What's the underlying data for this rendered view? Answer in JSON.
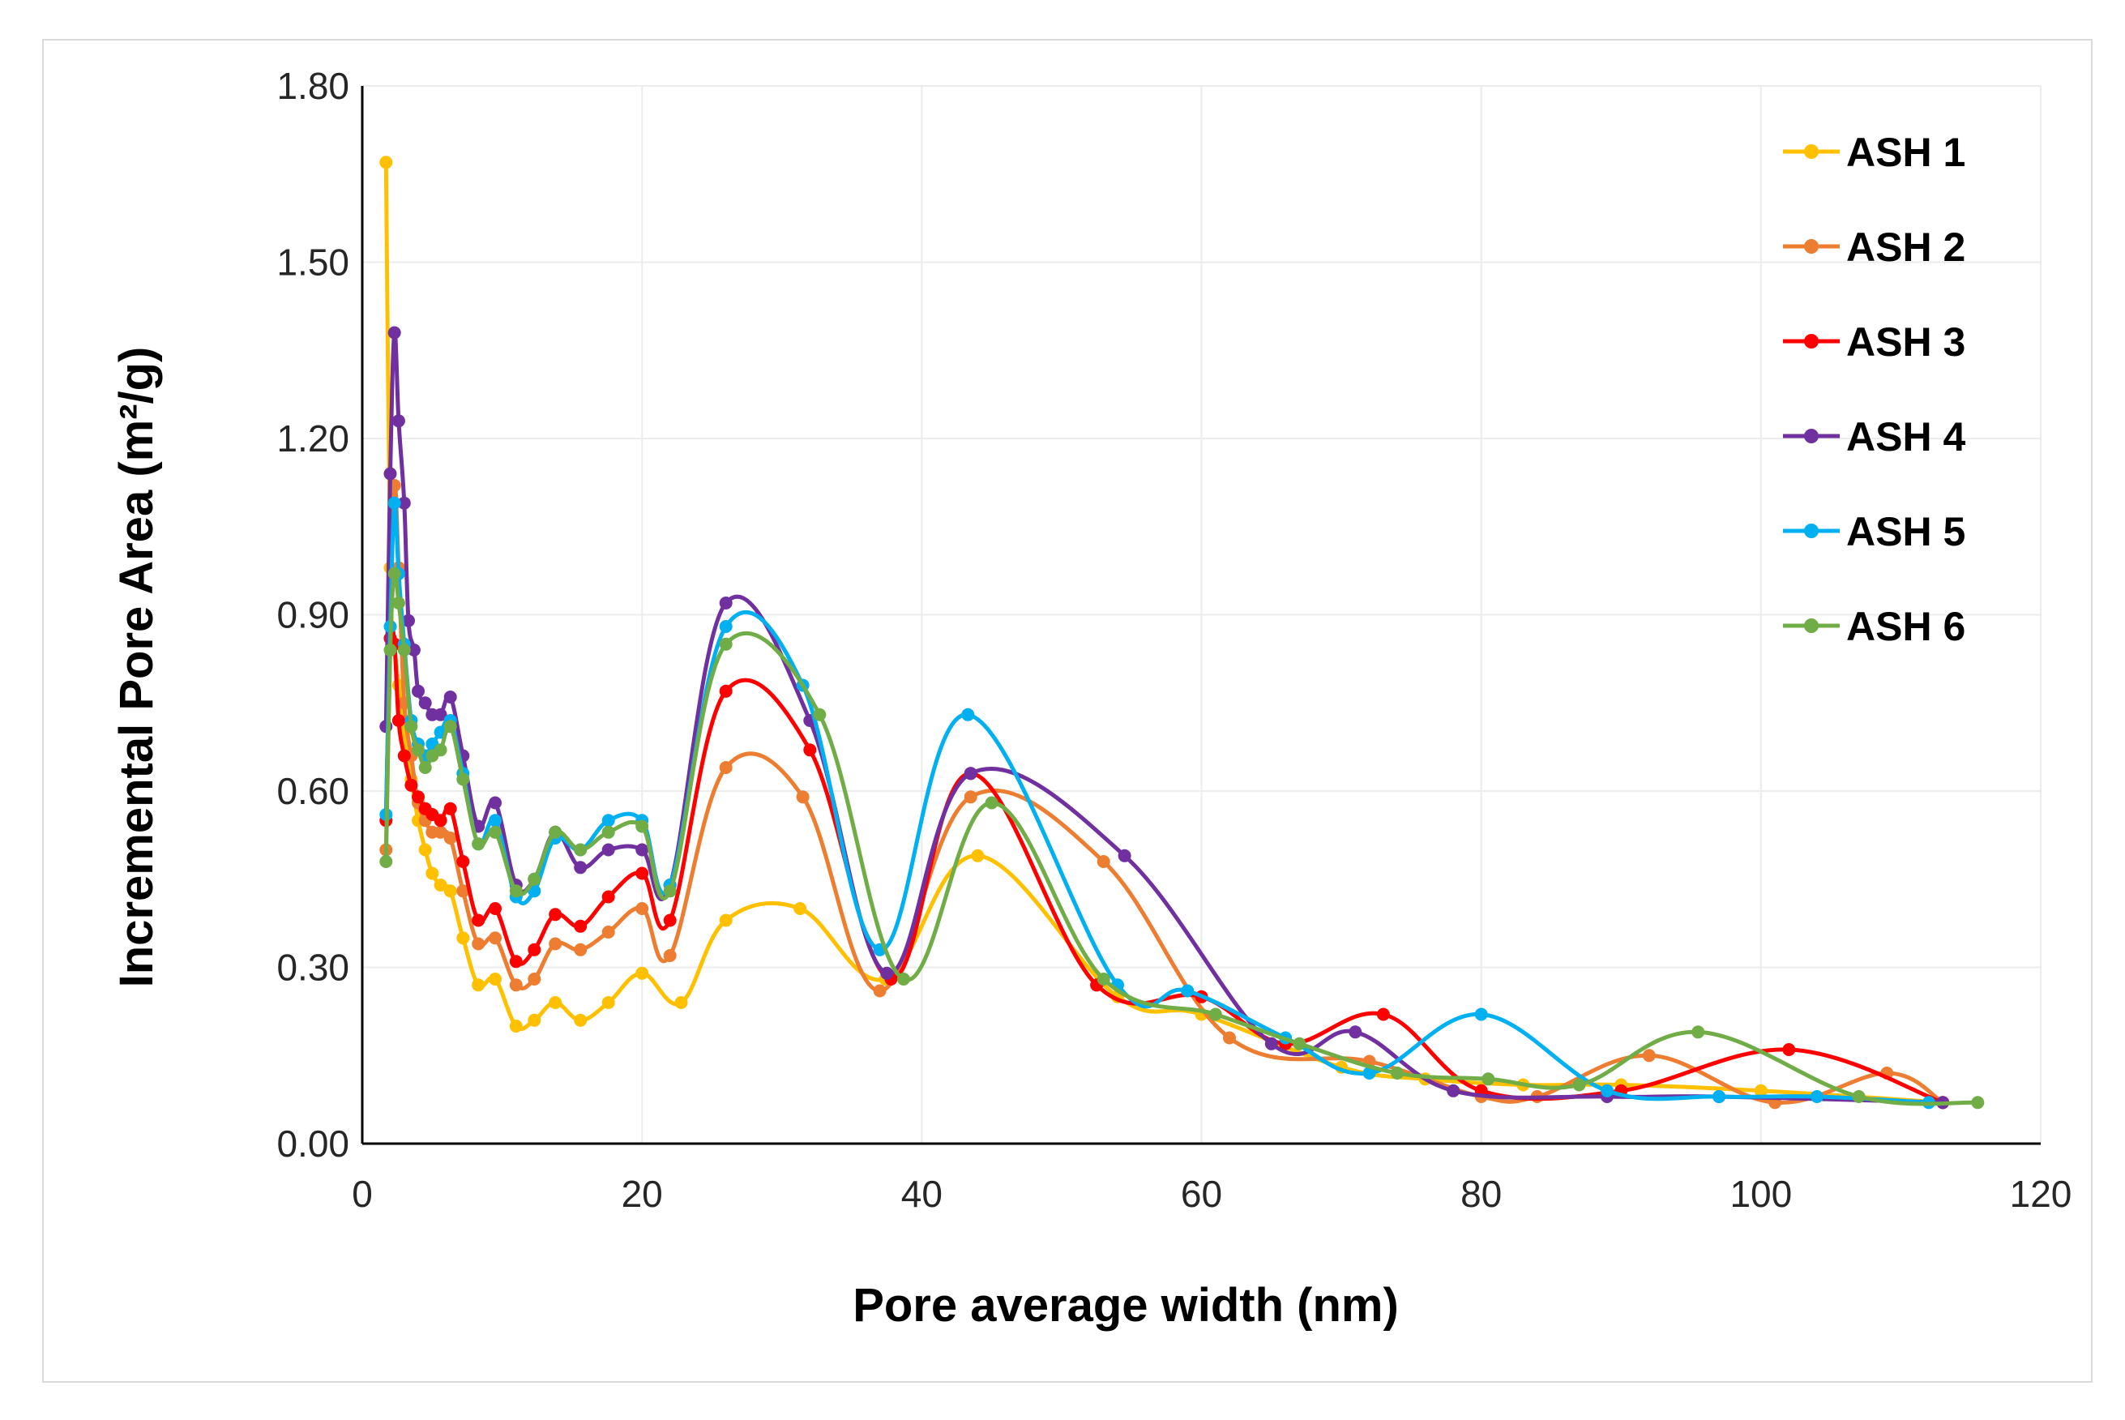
{
  "chart_data": {
    "type": "line",
    "title": "",
    "xlabel": "Pore average width (nm)",
    "ylabel": "Incremental Pore Area (m²/g)",
    "xlim": [
      0,
      120
    ],
    "ylim": [
      0,
      1.8
    ],
    "xticks": [
      0,
      20,
      40,
      60,
      80,
      100,
      120
    ],
    "yticks": [
      0,
      0.3,
      0.6,
      0.9,
      1.2,
      1.5,
      1.8
    ],
    "xtick_labels": [
      "0",
      "20",
      "40",
      "60",
      "80",
      "100",
      "120"
    ],
    "ytick_labels": [
      "0.00",
      "0.30",
      "0.60",
      "0.90",
      "1.20",
      "1.50",
      "1.80"
    ],
    "grid": true,
    "legend_position": "top-right",
    "series": [
      {
        "name": "ASH 1",
        "color": "#FFC000",
        "points": [
          [
            1.7,
            1.67
          ],
          [
            2.0,
            0.98
          ],
          [
            2.3,
            0.85
          ],
          [
            2.6,
            0.78
          ],
          [
            3.0,
            0.7
          ],
          [
            3.5,
            0.62
          ],
          [
            4.0,
            0.55
          ],
          [
            4.5,
            0.5
          ],
          [
            5.0,
            0.46
          ],
          [
            5.6,
            0.44
          ],
          [
            6.3,
            0.43
          ],
          [
            7.2,
            0.35
          ],
          [
            8.3,
            0.27
          ],
          [
            9.5,
            0.28
          ],
          [
            11.0,
            0.2
          ],
          [
            12.3,
            0.21
          ],
          [
            13.8,
            0.24
          ],
          [
            15.6,
            0.21
          ],
          [
            17.6,
            0.24
          ],
          [
            20.0,
            0.29
          ],
          [
            22.8,
            0.24
          ],
          [
            26.0,
            0.38
          ],
          [
            31.3,
            0.4
          ],
          [
            37.4,
            0.28
          ],
          [
            44.0,
            0.49
          ],
          [
            54.0,
            0.25
          ],
          [
            60.0,
            0.22
          ],
          [
            70.0,
            0.13
          ],
          [
            76.0,
            0.11
          ],
          [
            83.0,
            0.1
          ],
          [
            90.0,
            0.1
          ],
          [
            100.0,
            0.09
          ],
          [
            113.0,
            0.07
          ]
        ]
      },
      {
        "name": "ASH 2",
        "color": "#ED7D31",
        "points": [
          [
            1.7,
            0.5
          ],
          [
            2.0,
            0.86
          ],
          [
            2.3,
            1.12
          ],
          [
            2.6,
            0.98
          ],
          [
            3.0,
            0.75
          ],
          [
            3.5,
            0.66
          ],
          [
            4.0,
            0.58
          ],
          [
            4.5,
            0.55
          ],
          [
            5.0,
            0.53
          ],
          [
            5.6,
            0.53
          ],
          [
            6.3,
            0.52
          ],
          [
            7.2,
            0.43
          ],
          [
            8.3,
            0.34
          ],
          [
            9.5,
            0.35
          ],
          [
            11.0,
            0.27
          ],
          [
            12.3,
            0.28
          ],
          [
            13.8,
            0.34
          ],
          [
            15.6,
            0.33
          ],
          [
            17.6,
            0.36
          ],
          [
            20.0,
            0.4
          ],
          [
            22.0,
            0.32
          ],
          [
            26.0,
            0.64
          ],
          [
            31.5,
            0.59
          ],
          [
            37.0,
            0.26
          ],
          [
            43.5,
            0.59
          ],
          [
            53.0,
            0.48
          ],
          [
            62.0,
            0.18
          ],
          [
            72.0,
            0.14
          ],
          [
            80.0,
            0.08
          ],
          [
            84.0,
            0.08
          ],
          [
            92.0,
            0.15
          ],
          [
            101.0,
            0.07
          ],
          [
            109.0,
            0.12
          ],
          [
            113.0,
            0.07
          ]
        ]
      },
      {
        "name": "ASH 3",
        "color": "#FF0000",
        "points": [
          [
            1.7,
            0.55
          ],
          [
            2.0,
            0.86
          ],
          [
            2.3,
            0.85
          ],
          [
            2.6,
            0.72
          ],
          [
            3.0,
            0.66
          ],
          [
            3.5,
            0.61
          ],
          [
            4.0,
            0.59
          ],
          [
            4.5,
            0.57
          ],
          [
            5.0,
            0.56
          ],
          [
            5.6,
            0.55
          ],
          [
            6.3,
            0.57
          ],
          [
            7.2,
            0.48
          ],
          [
            8.3,
            0.38
          ],
          [
            9.5,
            0.4
          ],
          [
            11.0,
            0.31
          ],
          [
            12.3,
            0.33
          ],
          [
            13.8,
            0.39
          ],
          [
            15.6,
            0.37
          ],
          [
            17.6,
            0.42
          ],
          [
            20.0,
            0.46
          ],
          [
            22.0,
            0.38
          ],
          [
            26.0,
            0.77
          ],
          [
            32.0,
            0.67
          ],
          [
            37.8,
            0.28
          ],
          [
            43.5,
            0.63
          ],
          [
            52.5,
            0.27
          ],
          [
            60.0,
            0.25
          ],
          [
            66.0,
            0.17
          ],
          [
            73.0,
            0.22
          ],
          [
            80.0,
            0.09
          ],
          [
            90.0,
            0.09
          ],
          [
            102.0,
            0.16
          ],
          [
            113.0,
            0.07
          ]
        ]
      },
      {
        "name": "ASH 4",
        "color": "#7030A0",
        "points": [
          [
            1.7,
            0.71
          ],
          [
            2.0,
            1.14
          ],
          [
            2.3,
            1.38
          ],
          [
            2.6,
            1.23
          ],
          [
            3.0,
            1.09
          ],
          [
            3.3,
            0.89
          ],
          [
            3.7,
            0.84
          ],
          [
            4.0,
            0.77
          ],
          [
            4.5,
            0.75
          ],
          [
            5.0,
            0.73
          ],
          [
            5.6,
            0.73
          ],
          [
            6.3,
            0.76
          ],
          [
            7.2,
            0.66
          ],
          [
            8.3,
            0.54
          ],
          [
            9.5,
            0.58
          ],
          [
            11.0,
            0.44
          ],
          [
            12.3,
            0.45
          ],
          [
            13.8,
            0.53
          ],
          [
            15.6,
            0.47
          ],
          [
            17.6,
            0.5
          ],
          [
            20.0,
            0.5
          ],
          [
            22.0,
            0.44
          ],
          [
            26.0,
            0.92
          ],
          [
            32.0,
            0.72
          ],
          [
            37.5,
            0.29
          ],
          [
            43.5,
            0.63
          ],
          [
            54.5,
            0.49
          ],
          [
            65.0,
            0.17
          ],
          [
            71.0,
            0.19
          ],
          [
            78.0,
            0.09
          ],
          [
            89.0,
            0.08
          ],
          [
            97.0,
            0.08
          ],
          [
            113.0,
            0.07
          ]
        ]
      },
      {
        "name": "ASH 5",
        "color": "#00B0F0",
        "points": [
          [
            1.7,
            0.56
          ],
          [
            2.0,
            0.88
          ],
          [
            2.3,
            1.09
          ],
          [
            2.6,
            0.97
          ],
          [
            3.0,
            0.85
          ],
          [
            3.5,
            0.72
          ],
          [
            4.0,
            0.68
          ],
          [
            4.5,
            0.66
          ],
          [
            5.0,
            0.68
          ],
          [
            5.6,
            0.7
          ],
          [
            6.3,
            0.72
          ],
          [
            7.2,
            0.63
          ],
          [
            8.3,
            0.51
          ],
          [
            9.5,
            0.55
          ],
          [
            11.0,
            0.42
          ],
          [
            12.3,
            0.43
          ],
          [
            13.8,
            0.52
          ],
          [
            15.6,
            0.5
          ],
          [
            17.6,
            0.55
          ],
          [
            20.0,
            0.55
          ],
          [
            22.0,
            0.44
          ],
          [
            26.0,
            0.88
          ],
          [
            31.5,
            0.78
          ],
          [
            37.0,
            0.33
          ],
          [
            43.3,
            0.73
          ],
          [
            54.0,
            0.27
          ],
          [
            59.0,
            0.26
          ],
          [
            66.0,
            0.18
          ],
          [
            72.0,
            0.12
          ],
          [
            80.0,
            0.22
          ],
          [
            89.0,
            0.09
          ],
          [
            97.0,
            0.08
          ],
          [
            104.0,
            0.08
          ],
          [
            112.0,
            0.07
          ]
        ]
      },
      {
        "name": "ASH 6",
        "color": "#70AD47",
        "points": [
          [
            1.7,
            0.48
          ],
          [
            2.0,
            0.84
          ],
          [
            2.3,
            0.97
          ],
          [
            2.6,
            0.92
          ],
          [
            3.0,
            0.84
          ],
          [
            3.5,
            0.71
          ],
          [
            4.0,
            0.67
          ],
          [
            4.5,
            0.64
          ],
          [
            5.0,
            0.66
          ],
          [
            5.6,
            0.67
          ],
          [
            6.3,
            0.71
          ],
          [
            7.2,
            0.62
          ],
          [
            8.3,
            0.51
          ],
          [
            9.5,
            0.53
          ],
          [
            11.0,
            0.43
          ],
          [
            12.3,
            0.45
          ],
          [
            13.8,
            0.53
          ],
          [
            15.6,
            0.5
          ],
          [
            17.6,
            0.53
          ],
          [
            20.0,
            0.54
          ],
          [
            22.0,
            0.43
          ],
          [
            26.0,
            0.85
          ],
          [
            32.7,
            0.73
          ],
          [
            38.7,
            0.28
          ],
          [
            45.0,
            0.58
          ],
          [
            53.0,
            0.28
          ],
          [
            61.0,
            0.22
          ],
          [
            67.0,
            0.17
          ],
          [
            74.0,
            0.12
          ],
          [
            80.5,
            0.11
          ],
          [
            87.0,
            0.1
          ],
          [
            95.5,
            0.19
          ],
          [
            107.0,
            0.08
          ],
          [
            115.5,
            0.07
          ]
        ]
      }
    ]
  }
}
